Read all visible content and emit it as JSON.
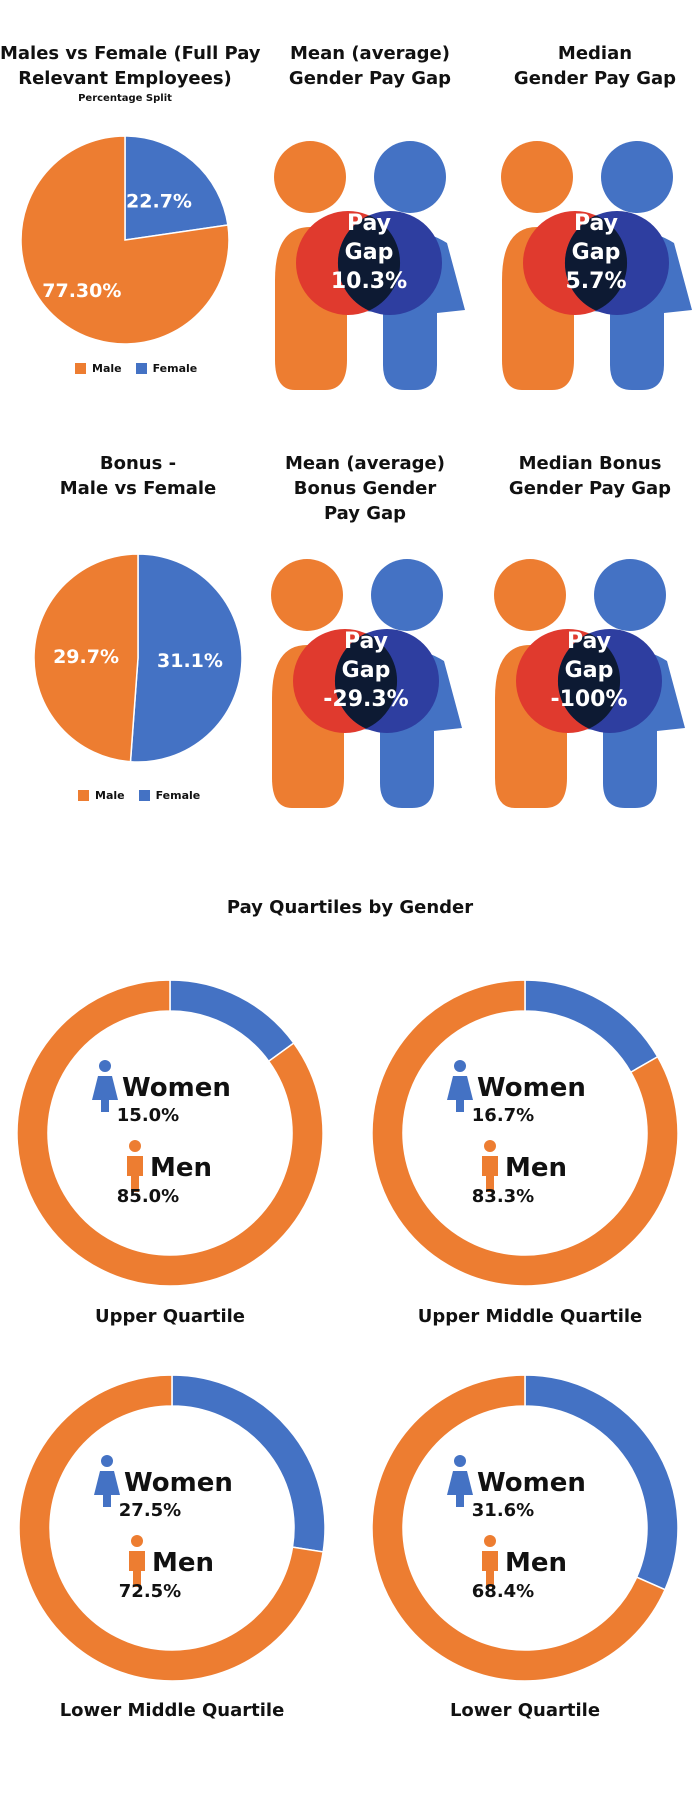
{
  "colors": {
    "male": "#ed7d31",
    "female": "#4472c4",
    "overlap_red": "#e03a2e",
    "overlap_blue": "#2e3ea0",
    "overlap_dark": "#0d1a33"
  },
  "legend": {
    "male": "Male",
    "female": "Female"
  },
  "gap_label": [
    "Pay",
    "Gap"
  ],
  "pies": [
    {
      "title_lines": [
        "Males vs Female (Full Pay",
        "Relevant Employees)"
      ],
      "subtitle": "Percentage Split",
      "chart_data": {
        "type": "pie",
        "labels": [
          "Female",
          "Male"
        ],
        "values": [
          22.7,
          77.3
        ],
        "value_labels": [
          "22.7%",
          "77.30%"
        ]
      }
    },
    {
      "title_lines": [
        "Bonus -",
        "Male vs Female"
      ],
      "subtitle": "",
      "chart_data": {
        "type": "pie",
        "labels": [
          "Female",
          "Male"
        ],
        "values": [
          31.1,
          29.7
        ],
        "value_labels": [
          "31.1%",
          "29.7%"
        ]
      }
    }
  ],
  "gaps": [
    {
      "title_lines": [
        "Mean (average)",
        "Gender Pay Gap"
      ],
      "value": "10.3%"
    },
    {
      "title_lines": [
        "Median",
        "Gender Pay Gap"
      ],
      "value": "5.7%"
    },
    {
      "title_lines": [
        "Mean (average)",
        "Bonus Gender",
        "Pay Gap"
      ],
      "value": "-29.3%"
    },
    {
      "title_lines": [
        "Median Bonus",
        "Gender Pay Gap"
      ],
      "value": "-100%"
    }
  ],
  "quartiles_title": "Pay Quartiles by Gender",
  "quartiles": [
    {
      "label": "Upper Quartile",
      "women": 15.0,
      "men": 85.0,
      "women_text": "15.0%",
      "men_text": "85.0%"
    },
    {
      "label": "Upper Middle Quartile",
      "women": 16.7,
      "men": 83.3,
      "women_text": "16.7%",
      "men_text": "83.3%"
    },
    {
      "label": "Lower Middle Quartile",
      "women": 27.5,
      "men": 72.5,
      "women_text": "27.5%",
      "men_text": "72.5%"
    },
    {
      "label": "Lower Quartile",
      "women": 31.6,
      "men": 68.4,
      "women_text": "31.6%",
      "men_text": "68.4%"
    }
  ],
  "women_label": "Women",
  "men_label": "Men",
  "chart_data": [
    {
      "type": "pie",
      "title": "Males vs Female (Full Pay Relevant Employees)",
      "subtitle": "Percentage Split",
      "categories": [
        "Male",
        "Female"
      ],
      "values": [
        77.3,
        22.7
      ]
    },
    {
      "type": "pie",
      "title": "Bonus - Male vs Female",
      "categories": [
        "Male",
        "Female"
      ],
      "values": [
        29.7,
        31.1
      ]
    },
    {
      "type": "table",
      "title": "Gender Pay Gap",
      "rows": [
        [
          "Mean (average) Gender Pay Gap",
          "10.3%"
        ],
        [
          "Median Gender Pay Gap",
          "5.7%"
        ],
        [
          "Mean (average) Bonus Gender Pay Gap",
          "-29.3%"
        ],
        [
          "Median Bonus Gender Pay Gap",
          "-100%"
        ]
      ]
    },
    {
      "type": "pie",
      "title": "Pay Quartiles by Gender",
      "categories": [
        "Upper Quartile",
        "Upper Middle Quartile",
        "Lower Middle Quartile",
        "Lower Quartile"
      ],
      "series": [
        {
          "name": "Women",
          "values": [
            15.0,
            16.7,
            27.5,
            31.6
          ]
        },
        {
          "name": "Men",
          "values": [
            85.0,
            83.3,
            72.5,
            68.4
          ]
        }
      ]
    }
  ]
}
